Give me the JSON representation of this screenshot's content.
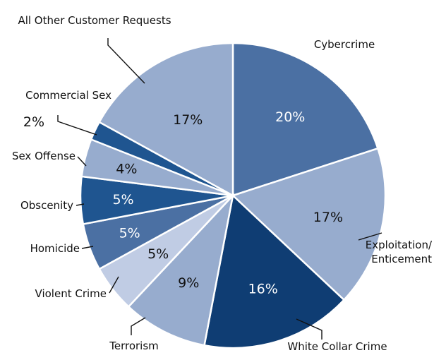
{
  "chart_data": {
    "type": "pie",
    "title": "",
    "slices": [
      {
        "name": "Cybercrime",
        "value": 20,
        "label": "20%",
        "color": "#4b70a3"
      },
      {
        "name": "Exploitation/\nEnticement",
        "value": 17,
        "label": "17%",
        "color": "#97acce"
      },
      {
        "name": "White Collar Crime",
        "value": 16,
        "label": "16%",
        "color": "#0f3d73"
      },
      {
        "name": "Terrorism",
        "value": 9,
        "label": "9%",
        "color": "#97acce"
      },
      {
        "name": "Violent Crime",
        "value": 5,
        "label": "5%",
        "color": "#c0cce4"
      },
      {
        "name": "Homicide",
        "value": 5,
        "label": "5%",
        "color": "#4b70a3"
      },
      {
        "name": "Obscenity",
        "value": 5,
        "label": "5%",
        "color": "#1f5590"
      },
      {
        "name": "Sex Offense",
        "value": 4,
        "label": "4%",
        "color": "#97acce"
      },
      {
        "name": "Commercial Sex",
        "value": 2,
        "label": "2%",
        "color": "#1f5590"
      },
      {
        "name": "All Other Customer Requests",
        "value": 17,
        "label": "17%",
        "color": "#97acce"
      }
    ],
    "legend": "none",
    "start_angle": "12 o'clock",
    "direction": "clockwise"
  }
}
